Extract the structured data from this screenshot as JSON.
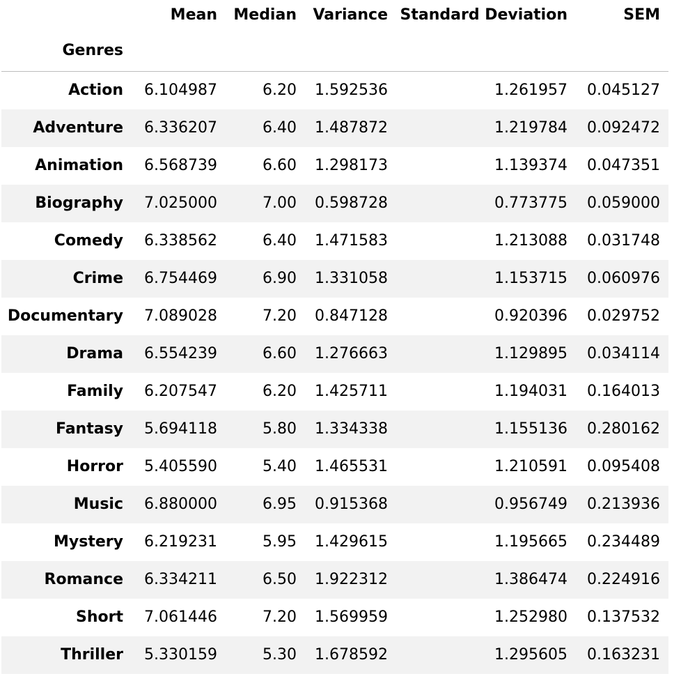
{
  "table": {
    "columns": [
      "Mean",
      "Median",
      "Variance",
      "Standard Deviation",
      "SEM"
    ],
    "index_name": "Genres",
    "rows": [
      {
        "genre": "Action",
        "mean": "6.104987",
        "median": "6.20",
        "variance": "1.592536",
        "std": "1.261957",
        "sem": "0.045127"
      },
      {
        "genre": "Adventure",
        "mean": "6.336207",
        "median": "6.40",
        "variance": "1.487872",
        "std": "1.219784",
        "sem": "0.092472"
      },
      {
        "genre": "Animation",
        "mean": "6.568739",
        "median": "6.60",
        "variance": "1.298173",
        "std": "1.139374",
        "sem": "0.047351"
      },
      {
        "genre": "Biography",
        "mean": "7.025000",
        "median": "7.00",
        "variance": "0.598728",
        "std": "0.773775",
        "sem": "0.059000"
      },
      {
        "genre": "Comedy",
        "mean": "6.338562",
        "median": "6.40",
        "variance": "1.471583",
        "std": "1.213088",
        "sem": "0.031748"
      },
      {
        "genre": "Crime",
        "mean": "6.754469",
        "median": "6.90",
        "variance": "1.331058",
        "std": "1.153715",
        "sem": "0.060976"
      },
      {
        "genre": "Documentary",
        "mean": "7.089028",
        "median": "7.20",
        "variance": "0.847128",
        "std": "0.920396",
        "sem": "0.029752"
      },
      {
        "genre": "Drama",
        "mean": "6.554239",
        "median": "6.60",
        "variance": "1.276663",
        "std": "1.129895",
        "sem": "0.034114"
      },
      {
        "genre": "Family",
        "mean": "6.207547",
        "median": "6.20",
        "variance": "1.425711",
        "std": "1.194031",
        "sem": "0.164013"
      },
      {
        "genre": "Fantasy",
        "mean": "5.694118",
        "median": "5.80",
        "variance": "1.334338",
        "std": "1.155136",
        "sem": "0.280162"
      },
      {
        "genre": "Horror",
        "mean": "5.405590",
        "median": "5.40",
        "variance": "1.465531",
        "std": "1.210591",
        "sem": "0.095408"
      },
      {
        "genre": "Music",
        "mean": "6.880000",
        "median": "6.95",
        "variance": "0.915368",
        "std": "0.956749",
        "sem": "0.213936"
      },
      {
        "genre": "Mystery",
        "mean": "6.219231",
        "median": "5.95",
        "variance": "1.429615",
        "std": "1.195665",
        "sem": "0.234489"
      },
      {
        "genre": "Romance",
        "mean": "6.334211",
        "median": "6.50",
        "variance": "1.922312",
        "std": "1.386474",
        "sem": "0.224916"
      },
      {
        "genre": "Short",
        "mean": "7.061446",
        "median": "7.20",
        "variance": "1.569959",
        "std": "1.252980",
        "sem": "0.137532"
      },
      {
        "genre": "Thriller",
        "mean": "5.330159",
        "median": "5.30",
        "variance": "1.678592",
        "std": "1.295605",
        "sem": "0.163231"
      }
    ]
  }
}
